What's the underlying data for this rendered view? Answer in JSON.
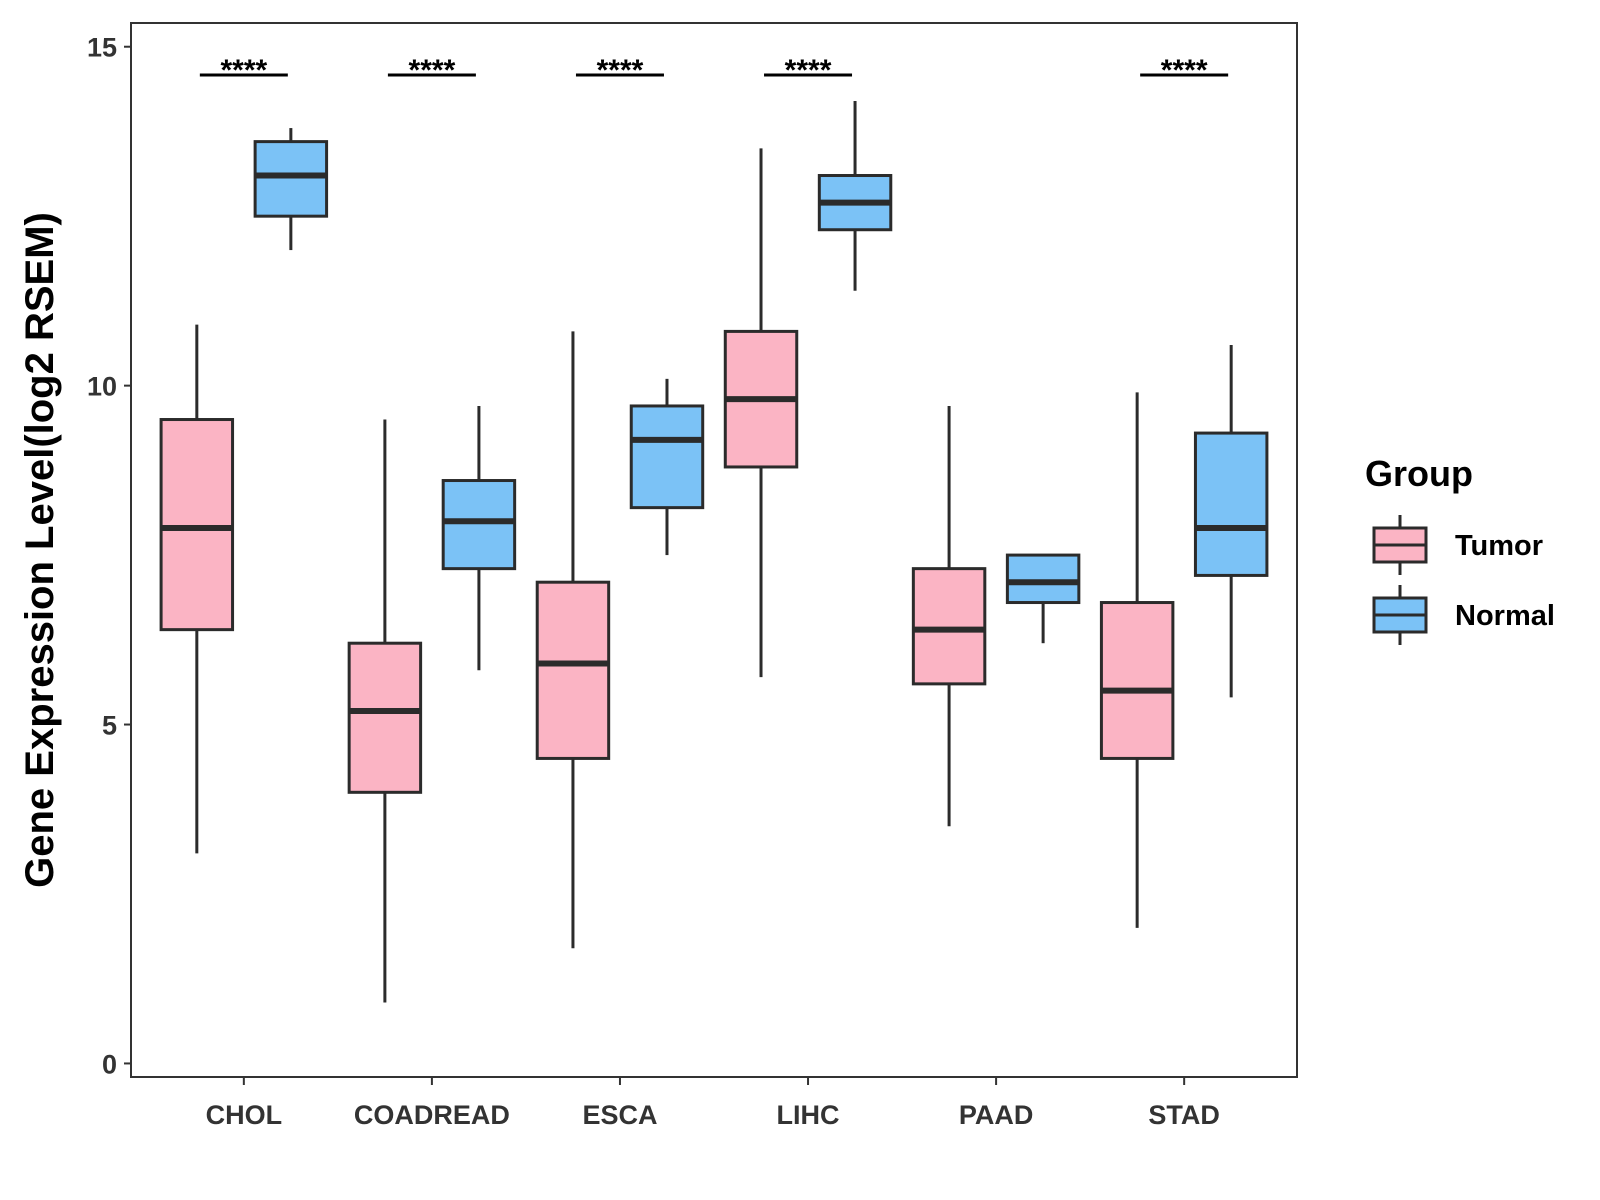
{
  "chart_data": {
    "type": "boxplot",
    "title": "",
    "xlabel": "",
    "ylabel": "Gene Expression Level(log2 RSEM)",
    "ylim": [
      -0.2,
      15.35
    ],
    "yticks": [
      0,
      5,
      10,
      15
    ],
    "grid": false,
    "legend": {
      "title": "Group",
      "position": "right"
    },
    "categories": [
      "CHOL",
      "COADREAD",
      "ESCA",
      "LIHC",
      "PAAD",
      "STAD"
    ],
    "series": [
      {
        "name": "Tumor",
        "color": "#FBB4C4",
        "boxes": [
          {
            "category": "CHOL",
            "min": 3.1,
            "q1": 6.4,
            "median": 7.9,
            "q3": 9.5,
            "max": 10.9
          },
          {
            "category": "COADREAD",
            "min": 0.9,
            "q1": 4.0,
            "median": 5.2,
            "q3": 6.2,
            "max": 9.5
          },
          {
            "category": "ESCA",
            "min": 1.7,
            "q1": 4.5,
            "median": 5.9,
            "q3": 7.1,
            "max": 10.8
          },
          {
            "category": "LIHC",
            "min": 5.7,
            "q1": 8.8,
            "median": 9.8,
            "q3": 10.8,
            "max": 13.5
          },
          {
            "category": "PAAD",
            "min": 3.5,
            "q1": 5.6,
            "median": 6.4,
            "q3": 7.3,
            "max": 9.7
          },
          {
            "category": "STAD",
            "min": 2.0,
            "q1": 4.5,
            "median": 5.5,
            "q3": 6.8,
            "max": 9.9
          }
        ]
      },
      {
        "name": "Normal",
        "color": "#7BC2F6",
        "boxes": [
          {
            "category": "CHOL",
            "min": 12.0,
            "q1": 12.5,
            "median": 13.1,
            "q3": 13.6,
            "max": 13.8
          },
          {
            "category": "COADREAD",
            "min": 5.8,
            "q1": 7.3,
            "median": 8.0,
            "q3": 8.6,
            "max": 9.7
          },
          {
            "category": "ESCA",
            "min": 7.5,
            "q1": 8.2,
            "median": 9.2,
            "q3": 9.7,
            "max": 10.1
          },
          {
            "category": "LIHC",
            "min": 11.4,
            "q1": 12.3,
            "median": 12.7,
            "q3": 13.1,
            "max": 14.2
          },
          {
            "category": "PAAD",
            "min": 6.2,
            "q1": 6.8,
            "median": 7.1,
            "q3": 7.5,
            "max": 7.5
          },
          {
            "category": "STAD",
            "min": 5.4,
            "q1": 7.2,
            "median": 7.9,
            "q3": 9.3,
            "max": 10.6
          }
        ]
      }
    ],
    "significance": [
      {
        "category": "CHOL",
        "label": "****"
      },
      {
        "category": "COADREAD",
        "label": "****"
      },
      {
        "category": "ESCA",
        "label": "****"
      },
      {
        "category": "LIHC",
        "label": "****"
      },
      {
        "category": "PAAD",
        "label": ""
      },
      {
        "category": "STAD",
        "label": "****"
      }
    ]
  }
}
